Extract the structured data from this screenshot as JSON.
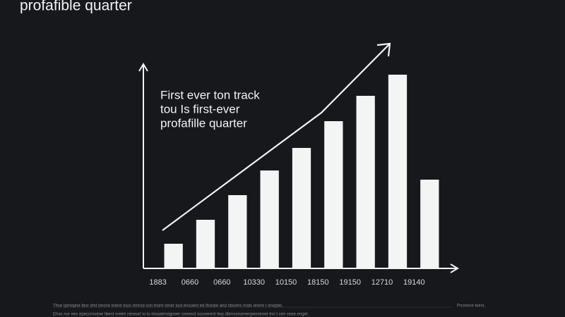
{
  "chart_data": {
    "type": "bar",
    "title": "profafible quarter",
    "annotation": [
      "First ever ton track",
      "tou Is first-ever",
      "profafille quarter"
    ],
    "categories": [
      "1883",
      "0660",
      "0660",
      "10330",
      "10150",
      "18150",
      "19150",
      "12710",
      "19140"
    ],
    "values": [
      35,
      69,
      104,
      139,
      171,
      209,
      245,
      275,
      126
    ],
    "color": "#f4f4f4",
    "ylim": [
      0,
      291
    ],
    "footer": [
      "Thse tprnepne tbor dmt terone tnene tous renrod con tnore toner tool ensoent ed thstate and nboetrs rnids enere t enoptel.",
      "Ehas nor ees epeccnnotne tbent nreint ceneurt io tu mooatrnegneer conesst couserent tiep dbrnsceoinenpenstrnet tno t cen ceee enget.",
      "Pnonnce toest."
    ]
  }
}
